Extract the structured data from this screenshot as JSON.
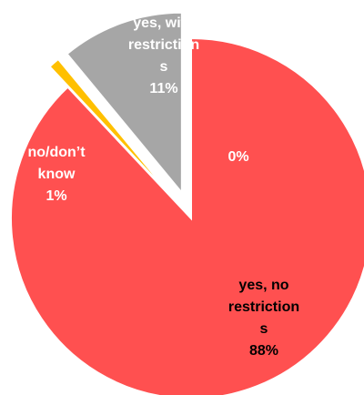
{
  "chart_data": {
    "type": "pie",
    "title": "",
    "start_angle_deg": 0,
    "direction": "clockwise",
    "exploded": true,
    "legend": "none",
    "slices": [
      {
        "label": "yes, no restriction s",
        "label_lines": [
          "yes, no",
          "restriction",
          "s"
        ],
        "percent_label": "88%",
        "value": 88,
        "color": "#ff5050"
      },
      {
        "label": "no/don’t know",
        "label_lines": [
          "no/don’t",
          "know"
        ],
        "percent_label": "1%",
        "value": 1,
        "color": "#ffc000"
      },
      {
        "label": "yes, with restriction s",
        "label_lines": [
          "yes, with",
          "restriction",
          "s"
        ],
        "percent_label": "11%",
        "value": 11,
        "color": "#a6a6a6"
      },
      {
        "label": "",
        "label_lines": [],
        "percent_label": "0%",
        "value": 0,
        "color": "#ff5050"
      }
    ]
  }
}
